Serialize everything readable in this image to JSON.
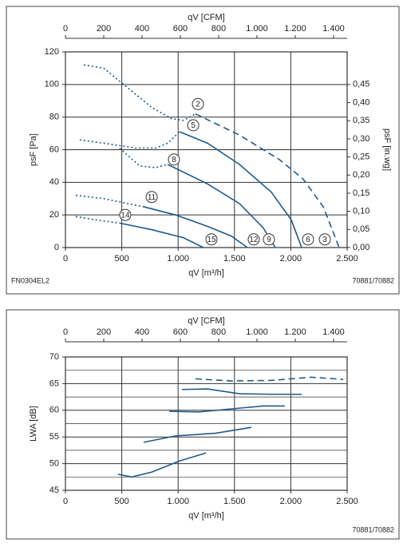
{
  "chart_data": [
    {
      "type": "line",
      "x2label": "qV [CFM]",
      "xlabel": "qV [m³/h]",
      "ylabel": "psF [Pa]",
      "y2label": "psF [in.wg]",
      "note_left": "FN0304EL2",
      "note_right": "70881/70882",
      "xlim": [
        0,
        2500
      ],
      "xticks": [
        0,
        500,
        {
          "value": 1000,
          "label": "1.000"
        },
        {
          "value": 1500,
          "label": "1.500"
        },
        {
          "value": 2000,
          "label": "2.000"
        },
        {
          "value": 2500,
          "label": "2.500"
        }
      ],
      "x2lim": [
        0,
        1471
      ],
      "x2ticks": [
        0,
        200,
        400,
        600,
        800,
        {
          "value": 1000,
          "label": "1.000"
        },
        {
          "value": 1200,
          "label": "1.200"
        },
        {
          "value": 1400,
          "label": "1.400"
        }
      ],
      "ylim": [
        0,
        120
      ],
      "yticks": [
        0,
        20,
        40,
        60,
        80,
        100,
        120
      ],
      "y2lim": [
        0,
        0.54
      ],
      "y2ticks": [
        {
          "value": 0,
          "label": "0,00"
        },
        {
          "value": 0.05,
          "label": "0,05"
        },
        {
          "value": 0.1,
          "label": "0,10"
        },
        {
          "value": 0.15,
          "label": "0,15"
        },
        {
          "value": 0.2,
          "label": "0,20"
        },
        {
          "value": 0.25,
          "label": "0,25"
        },
        {
          "value": 0.3,
          "label": "0,30"
        },
        {
          "value": 0.35,
          "label": "0,35"
        },
        {
          "value": 0.4,
          "label": "0,40"
        },
        {
          "value": 0.45,
          "label": "0,45"
        }
      ],
      "grid": true,
      "series": [
        {
          "color": "#1f5a8a",
          "style": "dotted",
          "x": [
            163,
            340,
            552,
            765,
            942,
            1048,
            1154
          ],
          "values": [
            112,
            110,
            98,
            86,
            79,
            78,
            82
          ]
        },
        {
          "color": "#1f5a8a",
          "style": "dashed",
          "x": [
            1154,
            1544,
            1898,
            2110,
            2288,
            2429
          ],
          "values": [
            82,
            69,
            54,
            42,
            25,
            0
          ]
        },
        {
          "color": "#1f5a8a",
          "style": "dotted",
          "x": [
            127,
            340,
            623,
            800,
            907,
            1013
          ],
          "values": [
            66,
            64,
            61,
            61,
            64,
            71
          ]
        },
        {
          "color": "#1f5a8a",
          "style": "solid",
          "x": [
            1013,
            1261,
            1544,
            1827,
            2004,
            2096
          ],
          "values": [
            71,
            64,
            51,
            34,
            17,
            0
          ]
        },
        {
          "color": "#1f5a8a",
          "style": "dotted",
          "x": [
            481,
            659,
            800,
            907
          ],
          "values": [
            61,
            50,
            49,
            51
          ]
        },
        {
          "color": "#1f5a8a",
          "style": "solid",
          "x": [
            907,
            1261,
            1544,
            1756,
            1862
          ],
          "values": [
            51,
            39,
            27,
            12,
            0
          ]
        },
        {
          "color": "#1f5a8a",
          "style": "dotted",
          "x": [
            92,
            340,
            552,
            694
          ],
          "values": [
            32,
            30,
            27,
            25
          ]
        },
        {
          "color": "#1f5a8a",
          "style": "solid",
          "x": [
            694,
            977,
            1261,
            1473,
            1615
          ],
          "values": [
            25,
            20,
            13,
            7,
            0
          ]
        },
        {
          "color": "#1f5a8a",
          "style": "dotted",
          "x": [
            92,
            269,
            481
          ],
          "values": [
            19,
            17,
            15
          ]
        },
        {
          "color": "#1f5a8a",
          "style": "solid",
          "x": [
            481,
            765,
            1048,
            1225
          ],
          "values": [
            15,
            11,
            6,
            0
          ]
        }
      ],
      "annotations": [
        {
          "text": "2",
          "x": 1176,
          "y": 88
        },
        {
          "text": "5",
          "x": 1134,
          "y": 75
        },
        {
          "text": "8",
          "x": 963,
          "y": 54
        },
        {
          "text": "11",
          "x": 765,
          "y": 31
        },
        {
          "text": "14",
          "x": 531,
          "y": 20
        },
        {
          "text": "15",
          "x": 1296,
          "y": 5
        },
        {
          "text": "12",
          "x": 1671,
          "y": 5
        },
        {
          "text": "9",
          "x": 1806,
          "y": 5
        },
        {
          "text": "6",
          "x": 2153,
          "y": 5
        },
        {
          "text": "3",
          "x": 2302,
          "y": 5
        }
      ]
    },
    {
      "type": "line",
      "x2label": "qV [CFM]",
      "xlabel": "qV [m³/h]",
      "ylabel": "LWA [dB]",
      "note_right": "70881/70882",
      "xlim": [
        0,
        2500
      ],
      "xticks": [
        0,
        500,
        {
          "value": 1000,
          "label": "1.000"
        },
        {
          "value": 1500,
          "label": "1.500"
        },
        {
          "value": 2000,
          "label": "2.000"
        },
        {
          "value": 2500,
          "label": "2.500"
        }
      ],
      "x2lim": [
        0,
        1471
      ],
      "x2ticks": [
        0,
        200,
        400,
        600,
        800,
        {
          "value": 1000,
          "label": "1.000"
        },
        {
          "value": 1200,
          "label": "1.200"
        },
        {
          "value": 1400,
          "label": "1.400"
        }
      ],
      "ylim": [
        45,
        70
      ],
      "yticks": [
        45,
        50,
        55,
        60,
        65,
        70
      ],
      "y_minor_grid": [
        47.5,
        52.5,
        57.5,
        62.5,
        67.5
      ],
      "grid": true,
      "series": [
        {
          "color": "#1f5a8a",
          "style": "dashed",
          "x": [
            1154,
            1473,
            1827,
            2181,
            2465
          ],
          "values": [
            65.9,
            65.5,
            65.6,
            66.2,
            65.8
          ]
        },
        {
          "color": "#1f5a8a",
          "style": "solid",
          "x": [
            1034,
            1261,
            1544,
            1827,
            2096
          ],
          "values": [
            63.9,
            64.0,
            63.1,
            63.0,
            63.0
          ]
        },
        {
          "color": "#1f5a8a",
          "style": "solid",
          "x": [
            921,
            1190,
            1544,
            1756,
            1947
          ],
          "values": [
            59.8,
            59.7,
            60.4,
            60.8,
            60.8
          ]
        },
        {
          "color": "#1f5a8a",
          "style": "solid",
          "x": [
            694,
            977,
            1331,
            1650
          ],
          "values": [
            54.0,
            55.2,
            55.7,
            56.8
          ]
        },
        {
          "color": "#1f5a8a",
          "style": "solid",
          "x": [
            467,
            588,
            765,
            1013,
            1247
          ],
          "values": [
            48.0,
            47.5,
            48.4,
            50.5,
            52.0
          ]
        }
      ]
    }
  ]
}
